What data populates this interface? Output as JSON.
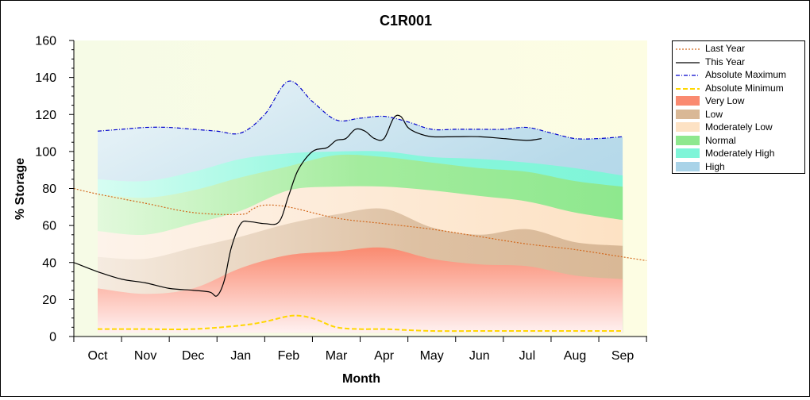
{
  "chart_data": {
    "type": "area",
    "title": "C1R001",
    "xlabel": "Month",
    "ylabel": "% Storage",
    "ylim": [
      0,
      160
    ],
    "yticks": [
      0,
      20,
      40,
      60,
      80,
      100,
      120,
      140,
      160
    ],
    "categories": [
      "Oct",
      "Nov",
      "Dec",
      "Jan",
      "Feb",
      "Mar",
      "Apr",
      "May",
      "Jun",
      "Jul",
      "Aug",
      "Sep"
    ],
    "grid": false,
    "legend_position": "right",
    "bands": {
      "x": [
        0,
        1,
        2,
        3,
        4,
        5,
        6,
        7,
        8,
        9,
        10,
        11
      ],
      "very_low_top": [
        26,
        23,
        26,
        37,
        44,
        46,
        48,
        42,
        39,
        38,
        33,
        31
      ],
      "low_top": [
        43,
        42,
        48,
        54,
        61,
        66,
        69,
        59,
        55,
        58,
        51,
        49
      ],
      "moderately_low_top": [
        57,
        55,
        61,
        68,
        79,
        81,
        81,
        79,
        76,
        73,
        67,
        63
      ],
      "normal_top": [
        77,
        75,
        79,
        86,
        92,
        98,
        97,
        94,
        91,
        89,
        84,
        81
      ],
      "moderately_high_top": [
        85,
        84,
        89,
        96,
        99,
        100,
        100,
        97,
        96,
        94,
        91,
        87
      ]
    },
    "series": [
      {
        "name": "Last Year",
        "color": "#d2691e",
        "style": "dotted",
        "x": [
          -0.5,
          0,
          1,
          2,
          3,
          3.25,
          3.5,
          4,
          5,
          6,
          7,
          8,
          9,
          10,
          11,
          11.5
        ],
        "values": [
          80,
          77,
          72,
          67,
          66,
          69,
          71,
          70,
          64,
          61,
          58,
          54,
          50,
          47,
          43,
          41
        ]
      },
      {
        "name": "This Year",
        "color": "#000000",
        "style": "solid",
        "x": [
          -0.5,
          0,
          0.5,
          1,
          1.5,
          2,
          2.35,
          2.5,
          2.65,
          2.8,
          3.0,
          3.2,
          3.5,
          3.8,
          4.0,
          4.2,
          4.5,
          4.8,
          5.0,
          5.2,
          5.4,
          5.6,
          5.8,
          6.0,
          6.2,
          6.35,
          6.5,
          6.7,
          7.0,
          7.5,
          8.0,
          8.5,
          9.0,
          9.3
        ],
        "values": [
          40,
          35,
          31,
          29,
          26,
          25,
          24,
          22,
          30,
          48,
          61,
          62,
          61,
          62,
          76,
          90,
          100,
          102,
          106,
          107,
          112,
          111,
          107,
          107,
          118,
          119,
          113,
          110,
          108,
          108,
          108,
          107,
          106,
          107
        ]
      },
      {
        "name": "Absolute Maximum",
        "color": "#0000cc",
        "style": "dashdot",
        "x": [
          0,
          0.5,
          1,
          1.5,
          2,
          2.5,
          3,
          3.5,
          4,
          4.5,
          5,
          5.5,
          6,
          6.5,
          7,
          7.5,
          8,
          8.5,
          9,
          9.5,
          10,
          10.5,
          11
        ],
        "values": [
          111,
          112,
          113,
          113,
          112,
          111,
          110,
          120,
          138,
          127,
          117,
          118,
          119,
          116,
          112,
          112,
          112,
          112,
          113,
          110,
          107,
          107,
          108
        ]
      },
      {
        "name": "Absolute Minimum",
        "color": "#ffd700",
        "style": "dashed",
        "x": [
          0,
          1,
          2,
          3,
          3.5,
          4,
          4.3,
          4.6,
          5,
          5.5,
          6,
          7,
          8,
          9,
          10,
          11
        ],
        "values": [
          4,
          4,
          4,
          6,
          8,
          11,
          11,
          9,
          5,
          4,
          4,
          3,
          3,
          3,
          3,
          3
        ]
      }
    ],
    "legend": [
      {
        "label": "Last Year",
        "kind": "line",
        "color": "#d2691e",
        "style": "dotted"
      },
      {
        "label": "This Year",
        "kind": "line",
        "color": "#000000",
        "style": "solid"
      },
      {
        "label": "Absolute Maximum",
        "kind": "line",
        "color": "#0000cc",
        "style": "dashdot"
      },
      {
        "label": "Absolute Minimum",
        "kind": "line",
        "color": "#ffd700",
        "style": "dashed"
      },
      {
        "label": "Very Low",
        "kind": "fill",
        "color": "#fa8a70"
      },
      {
        "label": "Low",
        "kind": "fill",
        "color": "#d9b896"
      },
      {
        "label": "Moderately Low",
        "kind": "fill",
        "color": "#fde2c4"
      },
      {
        "label": "Normal",
        "kind": "fill",
        "color": "#8ee88e"
      },
      {
        "label": "Moderately High",
        "kind": "fill",
        "color": "#7ff5d8"
      },
      {
        "label": "High",
        "kind": "fill",
        "color": "#a9d3e8"
      }
    ]
  }
}
